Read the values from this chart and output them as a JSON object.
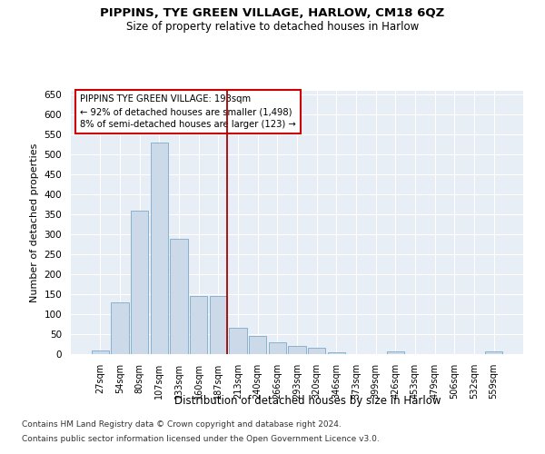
{
  "title": "PIPPINS, TYE GREEN VILLAGE, HARLOW, CM18 6QZ",
  "subtitle": "Size of property relative to detached houses in Harlow",
  "xlabel": "Distribution of detached houses by size in Harlow",
  "ylabel": "Number of detached properties",
  "footnote1": "Contains HM Land Registry data © Crown copyright and database right 2024.",
  "footnote2": "Contains public sector information licensed under the Open Government Licence v3.0.",
  "annotation_title": "PIPPINS TYE GREEN VILLAGE: 193sqm",
  "annotation_line1": "← 92% of detached houses are smaller (1,498)",
  "annotation_line2": "8% of semi-detached houses are larger (123) →",
  "bar_color": "#ccd9e8",
  "bar_edge_color": "#7aaac8",
  "vline_color": "#aa0000",
  "vline_x_index": 6,
  "background_color": "#e8eef5",
  "categories": [
    "27sqm",
    "54sqm",
    "80sqm",
    "107sqm",
    "133sqm",
    "160sqm",
    "187sqm",
    "213sqm",
    "240sqm",
    "266sqm",
    "293sqm",
    "320sqm",
    "346sqm",
    "373sqm",
    "399sqm",
    "426sqm",
    "453sqm",
    "479sqm",
    "506sqm",
    "532sqm",
    "559sqm"
  ],
  "values": [
    10,
    130,
    360,
    530,
    290,
    145,
    145,
    65,
    45,
    30,
    20,
    15,
    5,
    0,
    0,
    7,
    0,
    0,
    0,
    0,
    7
  ],
  "ylim": [
    0,
    660
  ],
  "yticks": [
    0,
    50,
    100,
    150,
    200,
    250,
    300,
    350,
    400,
    450,
    500,
    550,
    600,
    650
  ]
}
